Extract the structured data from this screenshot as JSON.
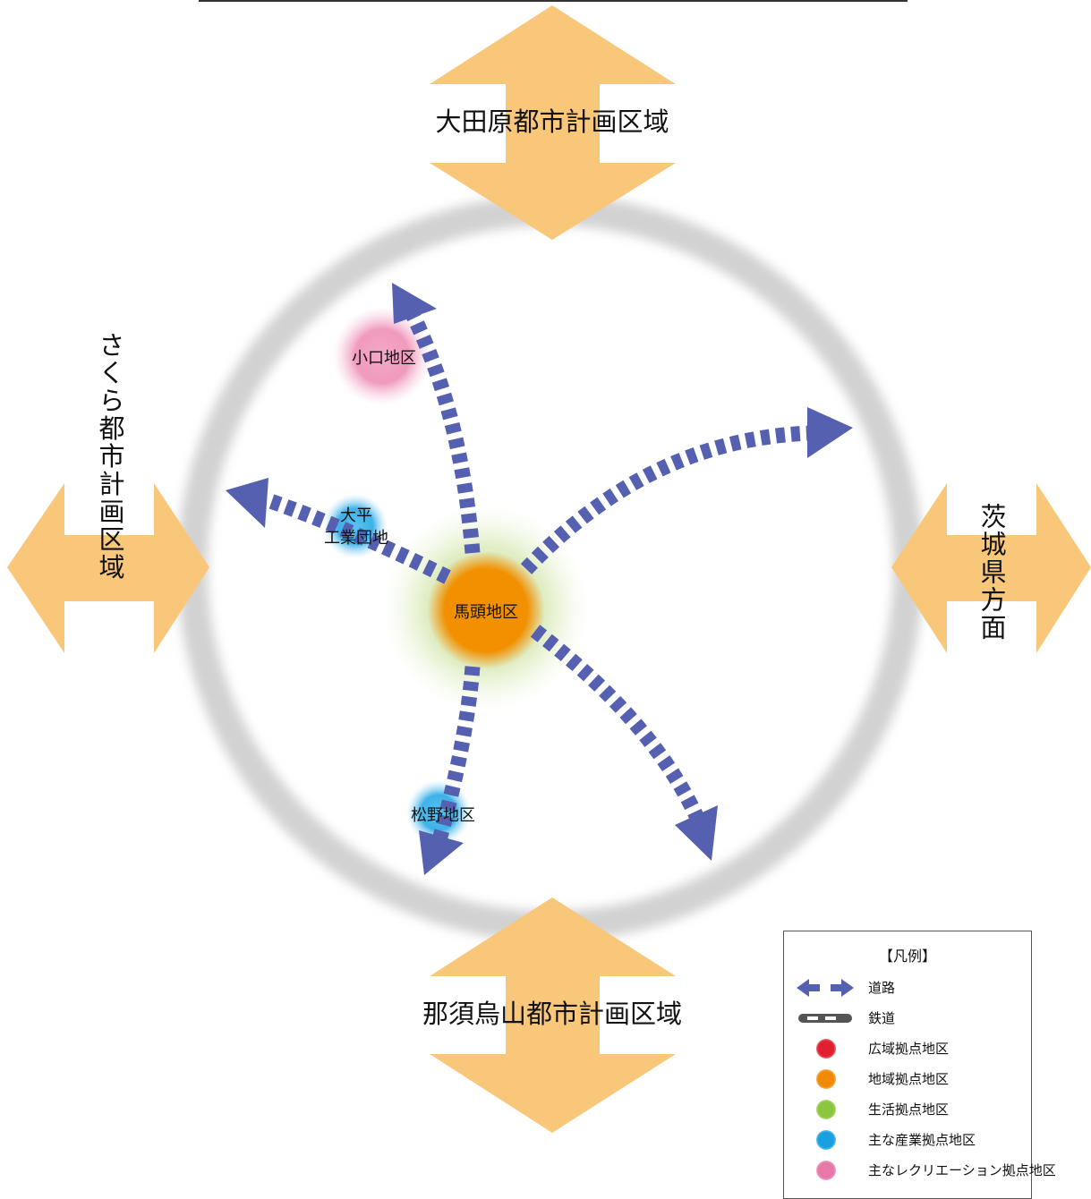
{
  "title_line": "",
  "directions": {
    "north": "大田原都市計画区域",
    "south": "那須烏山都市計画区域",
    "west": "さくら都市計画区域",
    "east": "茨城県方面"
  },
  "districts": {
    "center": "馬頭地区",
    "oguchi": "小口地区",
    "ohira_line1": "大平",
    "ohira_line2": "工業団地",
    "matsuno": "松野地区"
  },
  "legend": {
    "title": "【凡例】",
    "items": [
      {
        "label": "道路",
        "symbol": "road-arrows"
      },
      {
        "label": "鉄道",
        "symbol": "railway-line"
      },
      {
        "label": "広域拠点地区",
        "symbol": "dot",
        "color": "#e02030"
      },
      {
        "label": "地域拠点地区",
        "symbol": "dot",
        "color": "#f08a00"
      },
      {
        "label": "生活拠点地区",
        "symbol": "dot",
        "color": "#8cc63e"
      },
      {
        "label": "主な産業拠点地区",
        "symbol": "dot",
        "color": "#1aa0e0"
      },
      {
        "label": "主なレクリエーション拠点地区",
        "symbol": "dot",
        "color": "#e878a8"
      }
    ]
  },
  "colors": {
    "direction_arrow": "#f8c77a",
    "road": "#5560b0",
    "ring": "#cfcfcf",
    "center_core": "#f08a00",
    "center_halo": "#cfe3a8",
    "industrial": "#1aa0e0",
    "recreation": "#e878a8"
  }
}
